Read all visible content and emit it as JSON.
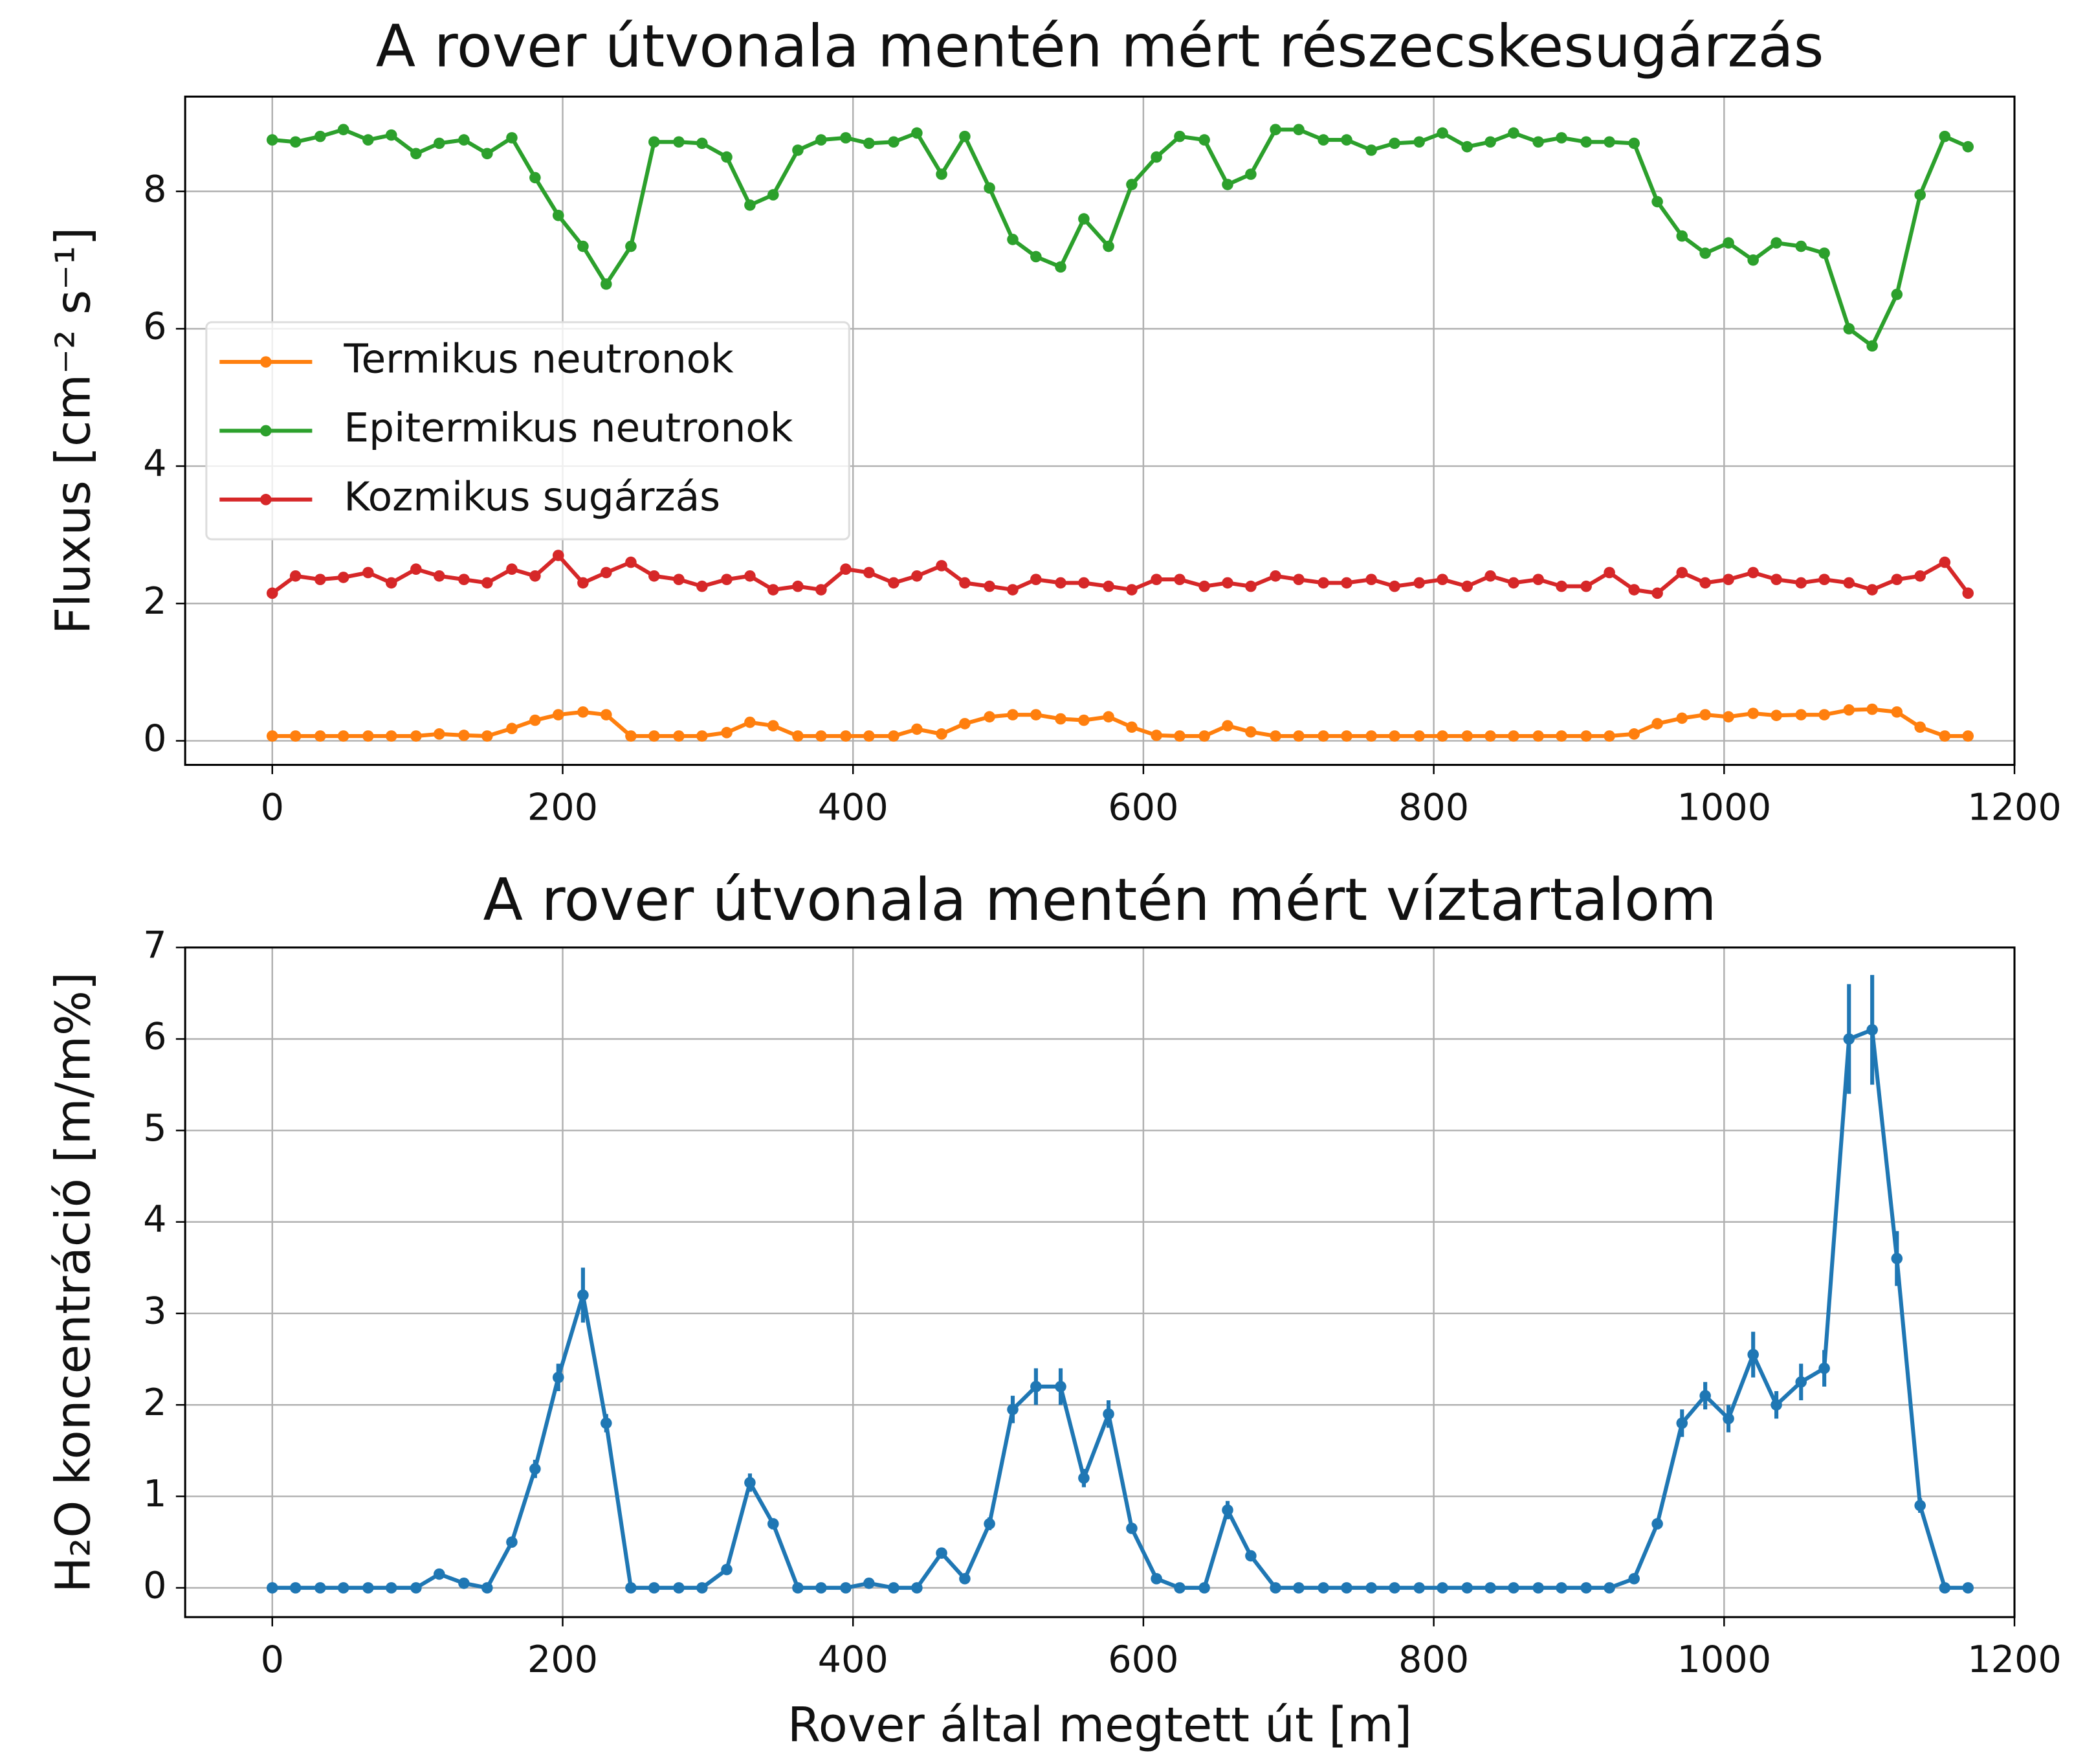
{
  "chart_data": [
    {
      "type": "line",
      "title": "A rover útvonala mentén mért részecskesugárzás",
      "ylabel": "Fluxus [cm⁻² s⁻¹]",
      "x": [
        0,
        16,
        33,
        49,
        66,
        82,
        99,
        115,
        132,
        148,
        165,
        181,
        197,
        214,
        230,
        247,
        263,
        280,
        296,
        313,
        329,
        345,
        362,
        378,
        395,
        411,
        428,
        444,
        461,
        477,
        494,
        510,
        526,
        543,
        559,
        576,
        592,
        609,
        625,
        642,
        658,
        674,
        691,
        707,
        724,
        740,
        757,
        773,
        790,
        806,
        823,
        839,
        855,
        872,
        888,
        905,
        921,
        938,
        954,
        971,
        987,
        1003,
        1020,
        1036,
        1053,
        1069,
        1086,
        1102,
        1119,
        1135,
        1152,
        1168
      ],
      "series": [
        {
          "name": "Termikus neutronok",
          "color": "#ff7f0e",
          "values": [
            0.07,
            0.07,
            0.07,
            0.07,
            0.07,
            0.07,
            0.07,
            0.1,
            0.08,
            0.07,
            0.18,
            0.3,
            0.38,
            0.42,
            0.38,
            0.07,
            0.07,
            0.07,
            0.07,
            0.12,
            0.27,
            0.22,
            0.07,
            0.07,
            0.07,
            0.07,
            0.07,
            0.17,
            0.1,
            0.25,
            0.35,
            0.38,
            0.38,
            0.32,
            0.3,
            0.35,
            0.2,
            0.08,
            0.07,
            0.07,
            0.22,
            0.13,
            0.07,
            0.07,
            0.07,
            0.07,
            0.07,
            0.07,
            0.07,
            0.07,
            0.07,
            0.07,
            0.07,
            0.07,
            0.07,
            0.07,
            0.07,
            0.1,
            0.25,
            0.33,
            0.38,
            0.35,
            0.4,
            0.37,
            0.38,
            0.38,
            0.45,
            0.46,
            0.42,
            0.2,
            0.07,
            0.07
          ]
        },
        {
          "name": "Epitermikus neutronok",
          "color": "#2ca02c",
          "values": [
            8.75,
            8.72,
            8.8,
            8.9,
            8.75,
            8.82,
            8.55,
            8.7,
            8.75,
            8.55,
            8.78,
            8.2,
            7.65,
            7.2,
            6.65,
            7.2,
            8.72,
            8.72,
            8.7,
            8.5,
            7.8,
            7.95,
            8.6,
            8.75,
            8.78,
            8.7,
            8.72,
            8.85,
            8.25,
            8.8,
            8.05,
            7.3,
            7.05,
            6.9,
            7.6,
            7.2,
            8.1,
            8.5,
            8.8,
            8.75,
            8.1,
            8.25,
            8.9,
            8.9,
            8.75,
            8.75,
            8.6,
            8.7,
            8.72,
            8.85,
            8.65,
            8.72,
            8.85,
            8.72,
            8.78,
            8.72,
            8.72,
            8.7,
            7.85,
            7.35,
            7.1,
            7.25,
            7.0,
            7.25,
            7.2,
            7.1,
            6.0,
            5.75,
            6.5,
            7.95,
            8.8,
            8.65
          ]
        },
        {
          "name": "Kozmikus sugárzás",
          "color": "#d62728",
          "values": [
            2.15,
            2.4,
            2.35,
            2.38,
            2.45,
            2.3,
            2.5,
            2.4,
            2.35,
            2.3,
            2.5,
            2.4,
            2.7,
            2.3,
            2.45,
            2.6,
            2.4,
            2.35,
            2.25,
            2.35,
            2.4,
            2.2,
            2.25,
            2.2,
            2.5,
            2.45,
            2.3,
            2.4,
            2.55,
            2.3,
            2.25,
            2.2,
            2.35,
            2.3,
            2.3,
            2.25,
            2.2,
            2.35,
            2.35,
            2.25,
            2.3,
            2.25,
            2.4,
            2.35,
            2.3,
            2.3,
            2.35,
            2.25,
            2.3,
            2.35,
            2.25,
            2.4,
            2.3,
            2.35,
            2.25,
            2.25,
            2.45,
            2.2,
            2.15,
            2.45,
            2.3,
            2.35,
            2.45,
            2.35,
            2.3,
            2.35,
            2.3,
            2.2,
            2.35,
            2.4,
            2.6,
            2.15
          ]
        }
      ],
      "xlim": [
        -60,
        1200
      ],
      "xticks": [
        0,
        200,
        400,
        600,
        800,
        1000,
        1200
      ],
      "ylim": [
        -0.35,
        9.38
      ],
      "yticks": [
        0,
        2,
        4,
        6,
        8
      ],
      "grid": true,
      "legend": "center left"
    },
    {
      "type": "line",
      "title": "A rover útvonala mentén mért víztartalom",
      "xlabel": "Rover által megtett út [m]",
      "ylabel": "H₂O koncentráció [m/m%]",
      "x": [
        0,
        16,
        33,
        49,
        66,
        82,
        99,
        115,
        132,
        148,
        165,
        181,
        197,
        214,
        230,
        247,
        263,
        280,
        296,
        313,
        329,
        345,
        362,
        378,
        395,
        411,
        428,
        444,
        461,
        477,
        494,
        510,
        526,
        543,
        559,
        576,
        592,
        609,
        625,
        642,
        658,
        674,
        691,
        707,
        724,
        740,
        757,
        773,
        790,
        806,
        823,
        839,
        855,
        872,
        888,
        905,
        921,
        938,
        954,
        971,
        987,
        1003,
        1020,
        1036,
        1053,
        1069,
        1086,
        1102,
        1119,
        1135,
        1152,
        1168
      ],
      "series": [
        {
          "color": "#1f77b4",
          "values": [
            0,
            0,
            0,
            0,
            0,
            0,
            0,
            0.15,
            0.05,
            0,
            0.5,
            1.3,
            2.3,
            3.2,
            1.8,
            0,
            0,
            0,
            0,
            0.2,
            1.15,
            0.7,
            0,
            0,
            0,
            0.05,
            0,
            0,
            0.38,
            0.1,
            0.7,
            1.95,
            2.2,
            2.2,
            1.2,
            1.9,
            0.65,
            0.1,
            0,
            0,
            0.85,
            0.35,
            0,
            0,
            0,
            0,
            0,
            0,
            0,
            0,
            0,
            0,
            0,
            0,
            0,
            0,
            0,
            0.1,
            0.7,
            1.8,
            2.1,
            1.85,
            2.55,
            2.0,
            2.25,
            2.4,
            6.0,
            6.1,
            3.6,
            0.9,
            0,
            0
          ],
          "errors": [
            0,
            0,
            0,
            0,
            0,
            0,
            0,
            0.02,
            0.01,
            0,
            0.05,
            0.1,
            0.15,
            0.3,
            0.1,
            0,
            0,
            0,
            0,
            0.03,
            0.1,
            0.06,
            0,
            0,
            0,
            0.01,
            0,
            0,
            0.05,
            0.02,
            0.07,
            0.15,
            0.2,
            0.2,
            0.1,
            0.15,
            0.06,
            0.02,
            0,
            0,
            0.1,
            0.04,
            0,
            0,
            0,
            0,
            0,
            0,
            0,
            0,
            0,
            0,
            0,
            0,
            0,
            0,
            0,
            0.02,
            0.06,
            0.15,
            0.15,
            0.15,
            0.25,
            0.15,
            0.2,
            0.2,
            0.6,
            0.6,
            0.3,
            0.08,
            0,
            0
          ]
        }
      ],
      "xlim": [
        -60,
        1200
      ],
      "xticks": [
        0,
        200,
        400,
        600,
        800,
        1000,
        1200
      ],
      "ylim": [
        -0.32,
        7
      ],
      "yticks": [
        0,
        1,
        2,
        3,
        4,
        5,
        6,
        7
      ],
      "grid": true
    }
  ]
}
